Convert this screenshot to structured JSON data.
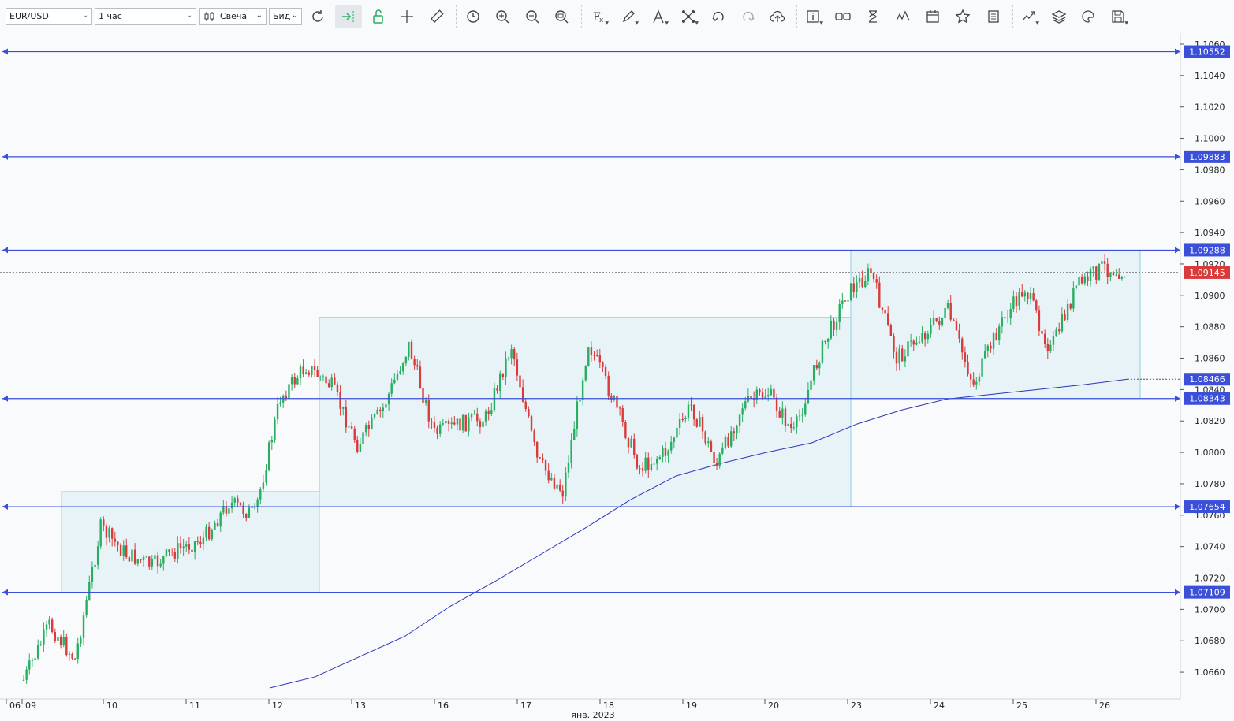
{
  "toolbar": {
    "symbol": "EUR/USD",
    "timeframe": "1 час",
    "chart_type": "Свеча",
    "price_side": "Бид"
  },
  "colors": {
    "bull": "#27ae60",
    "bear": "#d93a3a",
    "level_line": "#3b4fd8",
    "ma_line": "#2a36b8",
    "zone_fill": "#e8f3f8",
    "zone_border": "#8ecfe6",
    "current_price": "#d93a3a"
  },
  "axis": {
    "price_ticks": [
      "1.0660",
      "1.0680",
      "1.0700",
      "1.0720",
      "1.0740",
      "1.0760",
      "1.0780",
      "1.0800",
      "1.0820",
      "1.0840",
      "1.0860",
      "1.0880",
      "1.0900",
      "1.0920",
      "1.0940",
      "1.0960",
      "1.0980",
      "1.1000",
      "1.1020",
      "1.1040",
      "1.1060"
    ],
    "date_ticks": [
      "06",
      "09",
      "10",
      "11",
      "12",
      "13",
      "16",
      "17",
      "18",
      "19",
      "20",
      "23",
      "24",
      "25",
      "26"
    ],
    "month_label": "янв. 2023"
  },
  "chart_data": {
    "type": "candlestick",
    "symbol": "EUR/USD",
    "timeframe": "1h",
    "ylim": [
      1.065,
      1.1062
    ],
    "horizontal_levels": [
      1.10552,
      1.09883,
      1.09288,
      1.08343,
      1.07654,
      1.07109
    ],
    "current_price": 1.09145,
    "ma_last_value": 1.08466,
    "ranges": [
      {
        "from_day": "09",
        "to_day": "12",
        "low": 1.07109,
        "high": 1.0775
      },
      {
        "from_day": "12",
        "to_day": "20",
        "low": 1.07654,
        "high": 1.0886
      },
      {
        "from_day": "20",
        "to_day": "26",
        "low": 1.08343,
        "high": 1.09288
      }
    ],
    "price_path": [
      {
        "x": "09",
        "y": 1.0655
      },
      {
        "x": "09",
        "y": 1.069
      },
      {
        "x": "09",
        "y": 1.0668
      },
      {
        "x": "09",
        "y": 1.0752
      },
      {
        "x": "10",
        "y": 1.0735
      },
      {
        "x": "10",
        "y": 1.0728
      },
      {
        "x": "11",
        "y": 1.0738
      },
      {
        "x": "11",
        "y": 1.0745
      },
      {
        "x": "12",
        "y": 1.0768
      },
      {
        "x": "12",
        "y": 1.076
      },
      {
        "x": "12",
        "y": 1.0835
      },
      {
        "x": "13",
        "y": 1.0855
      },
      {
        "x": "13",
        "y": 1.0842
      },
      {
        "x": "13",
        "y": 1.0805
      },
      {
        "x": "16",
        "y": 1.0828
      },
      {
        "x": "16",
        "y": 1.0868
      },
      {
        "x": "16",
        "y": 1.0812
      },
      {
        "x": "17",
        "y": 1.0818
      },
      {
        "x": "17",
        "y": 1.0822
      },
      {
        "x": "17",
        "y": 1.0868
      },
      {
        "x": "18",
        "y": 1.0795
      },
      {
        "x": "18",
        "y": 1.0775
      },
      {
        "x": "18",
        "y": 1.087
      },
      {
        "x": "18",
        "y": 1.0832
      },
      {
        "x": "19",
        "y": 1.079
      },
      {
        "x": "19",
        "y": 1.08
      },
      {
        "x": "19",
        "y": 1.083
      },
      {
        "x": "19",
        "y": 1.0792
      },
      {
        "x": "20",
        "y": 1.083
      },
      {
        "x": "20",
        "y": 1.0838
      },
      {
        "x": "20",
        "y": 1.0812
      },
      {
        "x": "23",
        "y": 1.0862
      },
      {
        "x": "23",
        "y": 1.09
      },
      {
        "x": "23",
        "y": 1.0915
      },
      {
        "x": "24",
        "y": 1.086
      },
      {
        "x": "24",
        "y": 1.0875
      },
      {
        "x": "24",
        "y": 1.089
      },
      {
        "x": "24",
        "y": 1.0843
      },
      {
        "x": "25",
        "y": 1.088
      },
      {
        "x": "25",
        "y": 1.0905
      },
      {
        "x": "25",
        "y": 1.0865
      },
      {
        "x": "26",
        "y": 1.0905
      },
      {
        "x": "26",
        "y": 1.0918
      },
      {
        "x": "26",
        "y": 1.09145
      }
    ],
    "ma_path": [
      {
        "x": "12",
        "y": 1.065
      },
      {
        "x": "12",
        "y": 1.0657
      },
      {
        "x": "13",
        "y": 1.067
      },
      {
        "x": "16",
        "y": 1.0683
      },
      {
        "x": "16",
        "y": 1.0702
      },
      {
        "x": "17",
        "y": 1.0718
      },
      {
        "x": "17",
        "y": 1.0735
      },
      {
        "x": "18",
        "y": 1.0752
      },
      {
        "x": "18",
        "y": 1.077
      },
      {
        "x": "19",
        "y": 1.0785
      },
      {
        "x": "19",
        "y": 1.0793
      },
      {
        "x": "20",
        "y": 1.08
      },
      {
        "x": "20",
        "y": 1.0806
      },
      {
        "x": "23",
        "y": 1.0818
      },
      {
        "x": "23",
        "y": 1.0827
      },
      {
        "x": "24",
        "y": 1.0834
      },
      {
        "x": "24",
        "y": 1.0837
      },
      {
        "x": "25",
        "y": 1.084
      },
      {
        "x": "26",
        "y": 1.0843
      },
      {
        "x": "26",
        "y": 1.08466
      }
    ]
  }
}
